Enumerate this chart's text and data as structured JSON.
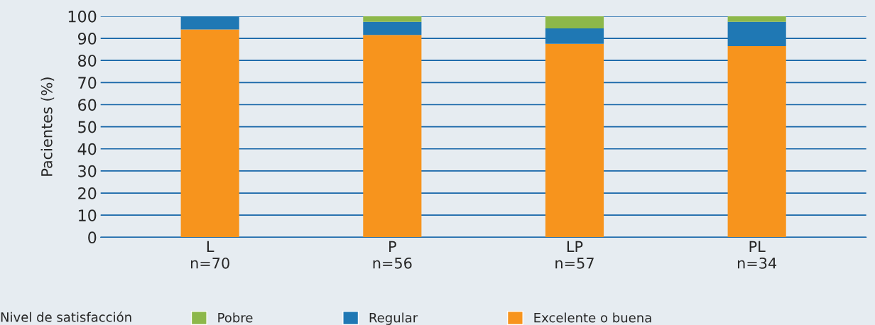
{
  "chart_data": {
    "type": "bar",
    "stacked": true,
    "ylabel": "Pacientes (%)",
    "legend_title": "Nivel de satisfacción",
    "legend": "bottom",
    "categories": [
      "L\nn=70",
      "P\nn=56",
      "LP\nn=57",
      "PL\nn=34"
    ],
    "series": [
      {
        "name": "Excelente o buena",
        "color": "#f7941d",
        "values": [
          94,
          91.5,
          87.5,
          86.5
        ]
      },
      {
        "name": "Regular",
        "color": "#1f78b4",
        "values": [
          6,
          6,
          7,
          11
        ]
      },
      {
        "name": "Pobre",
        "color": "#8db84a",
        "values": [
          0,
          2.5,
          5.5,
          2.5
        ]
      }
    ],
    "ylim": [
      0,
      100
    ],
    "yticks": [
      0,
      10,
      20,
      30,
      40,
      50,
      60,
      70,
      80,
      90,
      100
    ],
    "grid": "y"
  }
}
